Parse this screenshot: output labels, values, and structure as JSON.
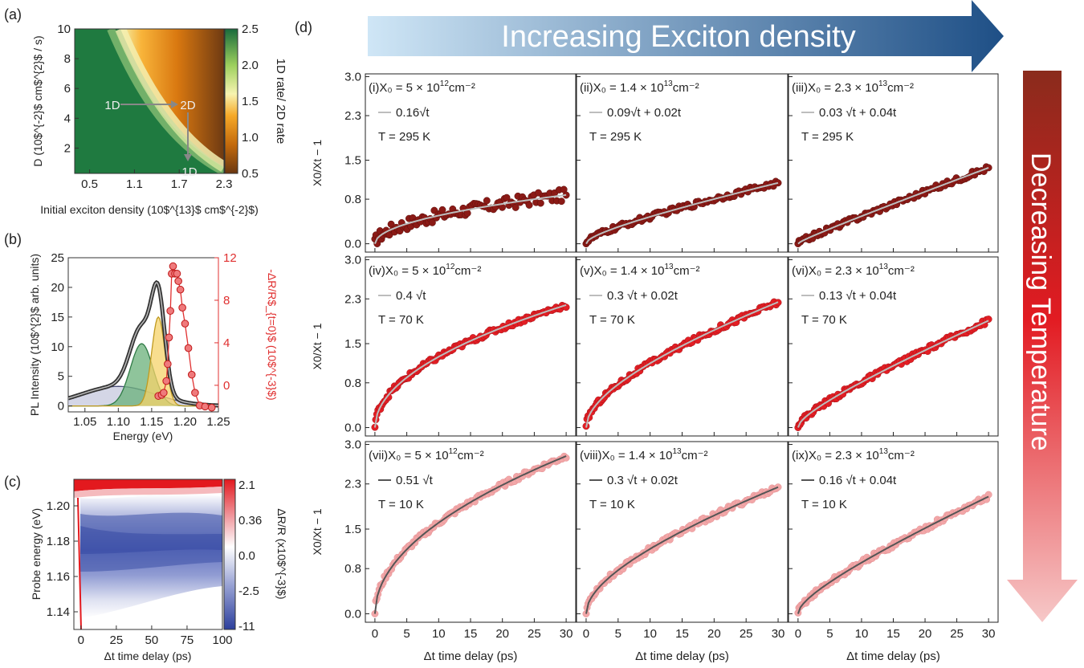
{
  "arrows": {
    "top_text": "Increasing Exciton density",
    "right_text": "Decreasing Temperature"
  },
  "panel_labels": {
    "a": "(a)",
    "b": "(b)",
    "c": "(c)",
    "d": "(d)"
  },
  "colors": {
    "dark_red": "#8b1a16",
    "red": "#e31e24",
    "pink": "#f2a7a8",
    "fit_light": "#bdbdbd",
    "fit_dark": "#555555",
    "peak_green": "#69b07a",
    "peak_yellow": "#f5d36a",
    "peak_grey": "#c5c8dd"
  },
  "chart_data": [
    {
      "id": "a",
      "type": "heatmap",
      "xlabel": "Initial exciton density (10$^{13}$ cm$^{-2}$)",
      "ylabel": "D (10$^{-2}$ cm$^{2}$ / s)",
      "xticks": [
        "0.5",
        "1.1",
        "1.7",
        "2.3"
      ],
      "yticks": [
        "2",
        "4",
        "6",
        "8",
        "10"
      ],
      "xlim": [
        0.3,
        2.3
      ],
      "ylim": [
        0.3,
        10
      ],
      "colorbar": {
        "label": "1D rate/ 2D rate",
        "ticks": [
          "0.5",
          "1.0",
          "1.5",
          "2.0",
          "2.5"
        ],
        "range": [
          0.5,
          2.5
        ]
      },
      "annotations": [
        "1D",
        "2D",
        "1D"
      ]
    },
    {
      "id": "b",
      "type": "line",
      "xlabel": "Energy (eV)",
      "ylabel": "PL Intensity (10$^{2}$ arb. units)",
      "y2label": "-ΔR/R$_{t=0}$ (10$^{-3}$)",
      "xticks": [
        "1.05",
        "1.10",
        "1.15",
        "1.20",
        "1.25"
      ],
      "yticks": [
        "0",
        "5",
        "10",
        "15",
        "20",
        "25"
      ],
      "y2ticks": [
        "0",
        "4",
        "8",
        "12"
      ],
      "xlim": [
        1.025,
        1.25
      ],
      "ylim": [
        -1,
        25
      ],
      "y2lim": [
        -2.5,
        12
      ],
      "series": [
        {
          "kind": "pl_peaks",
          "values": [
            {
              "center": 1.1,
              "amp": 3.3,
              "sigma": 0.055
            },
            {
              "center": 1.135,
              "amp": 10.5,
              "sigma": 0.017
            },
            {
              "center": 1.16,
              "amp": 15.0,
              "sigma": 0.01
            }
          ]
        },
        {
          "kind": "dR_points",
          "x": [
            1.16,
            1.165,
            1.168,
            1.172,
            1.174,
            1.176,
            1.178,
            1.18,
            1.182,
            1.185,
            1.188,
            1.19,
            1.193,
            1.196,
            1.2,
            1.205,
            1.21,
            1.215,
            1.222,
            1.23,
            1.24
          ],
          "y": [
            -1.0,
            -0.9,
            -0.7,
            0.4,
            2.0,
            4.5,
            7.0,
            10.5,
            11.2,
            10.5,
            10.5,
            9.8,
            9.0,
            7.3,
            5.8,
            3.5,
            1.0,
            -0.7,
            -1.9,
            -2.0,
            -2.1
          ]
        }
      ]
    },
    {
      "id": "c",
      "type": "heatmap",
      "xlabel": "Δt time delay (ps)",
      "ylabel": "Probe energy (eV)",
      "xticks": [
        "0",
        "25",
        "50",
        "75",
        "100"
      ],
      "yticks": [
        "1.14",
        "1.16",
        "1.18",
        "1.20"
      ],
      "xlim": [
        -5,
        100
      ],
      "ylim": [
        1.13,
        1.215
      ],
      "colorbar": {
        "label": "ΔR/R (x10$^{-3}$)",
        "ticks": [
          "2.1",
          "0.36",
          "0.0",
          "-2.5",
          "-11"
        ]
      }
    },
    {
      "id": "d",
      "type": "scatter",
      "xlabel": "Δt time delay (ps)",
      "ylabel": "X0/Xt − 1",
      "xticks": [
        "0",
        "5",
        "10",
        "15",
        "20",
        "25",
        "30"
      ],
      "yticks": [
        "0.0",
        "0.8",
        "1.5",
        "2.3",
        "3.0"
      ],
      "xlim": [
        -1.5,
        31.5
      ],
      "ylim": [
        -0.15,
        3.05
      ],
      "panels": [
        {
          "tag": "(i)",
          "x0": "5 × 10",
          "x0exp": "12",
          "fit_label": "0.16√t",
          "temp": "T = 295 K",
          "a": 0.16,
          "b": 0.0,
          "row": 0,
          "col": 0
        },
        {
          "tag": "(ii)",
          "x0": "1.4 × 10",
          "x0exp": "13",
          "fit_label": "0.09√t + 0.02t",
          "temp": "T = 295 K",
          "a": 0.09,
          "b": 0.02,
          "row": 0,
          "col": 1
        },
        {
          "tag": "(iii)",
          "x0": "2.3 × 10",
          "x0exp": "13",
          "fit_label": "0.03 √t + 0.04t",
          "temp": "T = 295 K",
          "a": 0.03,
          "b": 0.04,
          "row": 0,
          "col": 2
        },
        {
          "tag": "(iv)",
          "x0": "5 × 10",
          "x0exp": "12",
          "fit_label": "0.4 √t",
          "temp": "T = 70 K",
          "a": 0.4,
          "b": 0.0,
          "row": 1,
          "col": 0
        },
        {
          "tag": "(v)",
          "x0": "1.4 × 10",
          "x0exp": "13",
          "fit_label": "0.3 √t + 0.02t",
          "temp": "T = 70 K",
          "a": 0.3,
          "b": 0.02,
          "row": 1,
          "col": 1
        },
        {
          "tag": "(vi)",
          "x0": "2.3 × 10",
          "x0exp": "13",
          "fit_label": "0.13 √t + 0.04t",
          "temp": "T = 70 K",
          "a": 0.13,
          "b": 0.04,
          "row": 1,
          "col": 2
        },
        {
          "tag": "(vii)",
          "x0": "5 × 10",
          "x0exp": "12",
          "fit_label": "0.51 √t",
          "temp": "T = 10 K",
          "a": 0.51,
          "b": 0.0,
          "row": 2,
          "col": 0
        },
        {
          "tag": "(viii)",
          "x0": "1.4 × 10",
          "x0exp": "13",
          "fit_label": "0.3 √t + 0.02t",
          "temp": "T = 10 K",
          "a": 0.3,
          "b": 0.02,
          "row": 2,
          "col": 1
        },
        {
          "tag": "(ix)",
          "x0": "2.3 × 10",
          "x0exp": "13",
          "fit_label": "0.16 √t + 0.04t",
          "temp": "T = 10 K",
          "a": 0.16,
          "b": 0.04,
          "row": 2,
          "col": 2
        }
      ]
    }
  ]
}
